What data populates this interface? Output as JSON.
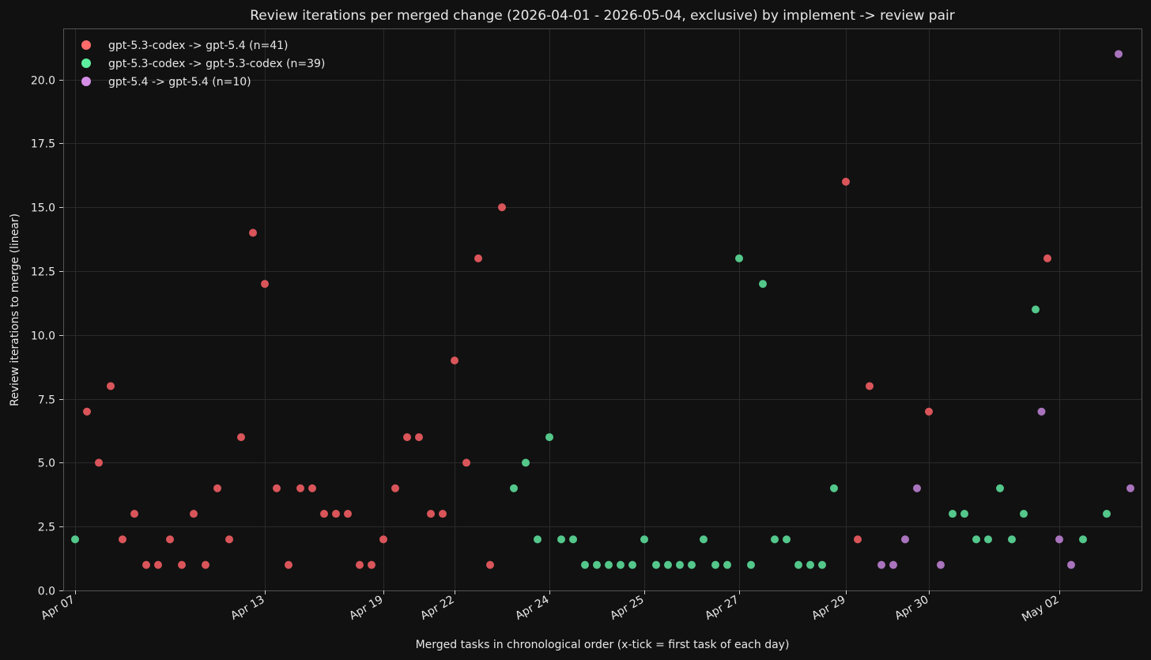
{
  "chart_data": {
    "type": "scatter",
    "title": "Review iterations per merged change (2026-04-01 - 2026-05-04, exclusive) by implement -> review pair",
    "xlabel": "Merged tasks in chronological order (x-tick = first task of each day)",
    "ylabel": "Review iterations to merge (linear)",
    "ylim": [
      0,
      22
    ],
    "xlim": [
      -0.5,
      89.5
    ],
    "grid": true,
    "legend_position": "top-left",
    "y_ticks": [
      0,
      2.5,
      5,
      7.5,
      10,
      12.5,
      15,
      17.5,
      20
    ],
    "y_tick_labels": [
      "0.0",
      "2.5",
      "5.0",
      "7.5",
      "10.0",
      "12.5",
      "15.0",
      "17.5",
      "20.0"
    ],
    "x_ticks": [
      0,
      16,
      26,
      32,
      40,
      48,
      56,
      65,
      72,
      83
    ],
    "x_tick_labels": [
      "Apr 07",
      "Apr 13",
      "Apr 19",
      "Apr 22",
      "Apr 24",
      "Apr 25",
      "Apr 27",
      "Apr 29",
      "Apr 30",
      "May 02"
    ],
    "series": [
      {
        "name": "gpt-5.3-codex -> gpt-5.4 (n=41)",
        "legend_color": "#ff6b6b",
        "color": "#d9555a",
        "x": [
          1,
          2,
          3,
          4,
          5,
          6,
          7,
          8,
          9,
          10,
          11,
          12,
          13,
          14,
          15,
          16,
          17,
          18,
          19,
          20,
          21,
          22,
          23,
          24,
          25,
          26,
          27,
          28,
          29,
          30,
          31,
          32,
          33,
          34,
          35,
          36,
          65,
          66,
          67,
          72,
          82
        ],
        "y": [
          7,
          5,
          8,
          2,
          3,
          1,
          1,
          2,
          1,
          3,
          1,
          4,
          2,
          6,
          14,
          12,
          4,
          1,
          4,
          4,
          3,
          3,
          3,
          1,
          1,
          2,
          4,
          6,
          6,
          3,
          3,
          9,
          5,
          13,
          1,
          15,
          16,
          2,
          8,
          7,
          13
        ]
      },
      {
        "name": "gpt-5.3-codex -> gpt-5.3-codex (n=39)",
        "legend_color": "#5eed9e",
        "color": "#54c78b",
        "x": [
          0,
          37,
          38,
          39,
          40,
          41,
          42,
          43,
          44,
          45,
          46,
          47,
          48,
          49,
          50,
          51,
          52,
          53,
          54,
          55,
          56,
          57,
          58,
          59,
          60,
          61,
          62,
          63,
          64,
          74,
          75,
          76,
          77,
          78,
          79,
          80,
          81,
          85,
          87
        ],
        "y": [
          2,
          4,
          5,
          2,
          6,
          2,
          2,
          1,
          1,
          1,
          1,
          1,
          2,
          1,
          1,
          1,
          1,
          2,
          1,
          1,
          13,
          1,
          12,
          2,
          2,
          1,
          1,
          1,
          4,
          3,
          3,
          2,
          2,
          4,
          2,
          3,
          11,
          2,
          3
        ]
      },
      {
        "name": "gpt-5.4 -> gpt-5.4 (n=10)",
        "legend_color": "#d48ee6",
        "color": "#a974bd",
        "x": [
          68,
          69,
          70,
          71,
          73,
          81.5,
          83,
          84,
          88,
          89
        ],
        "y": [
          1,
          1,
          2,
          4,
          1,
          7,
          2,
          1,
          21,
          4
        ]
      }
    ]
  }
}
